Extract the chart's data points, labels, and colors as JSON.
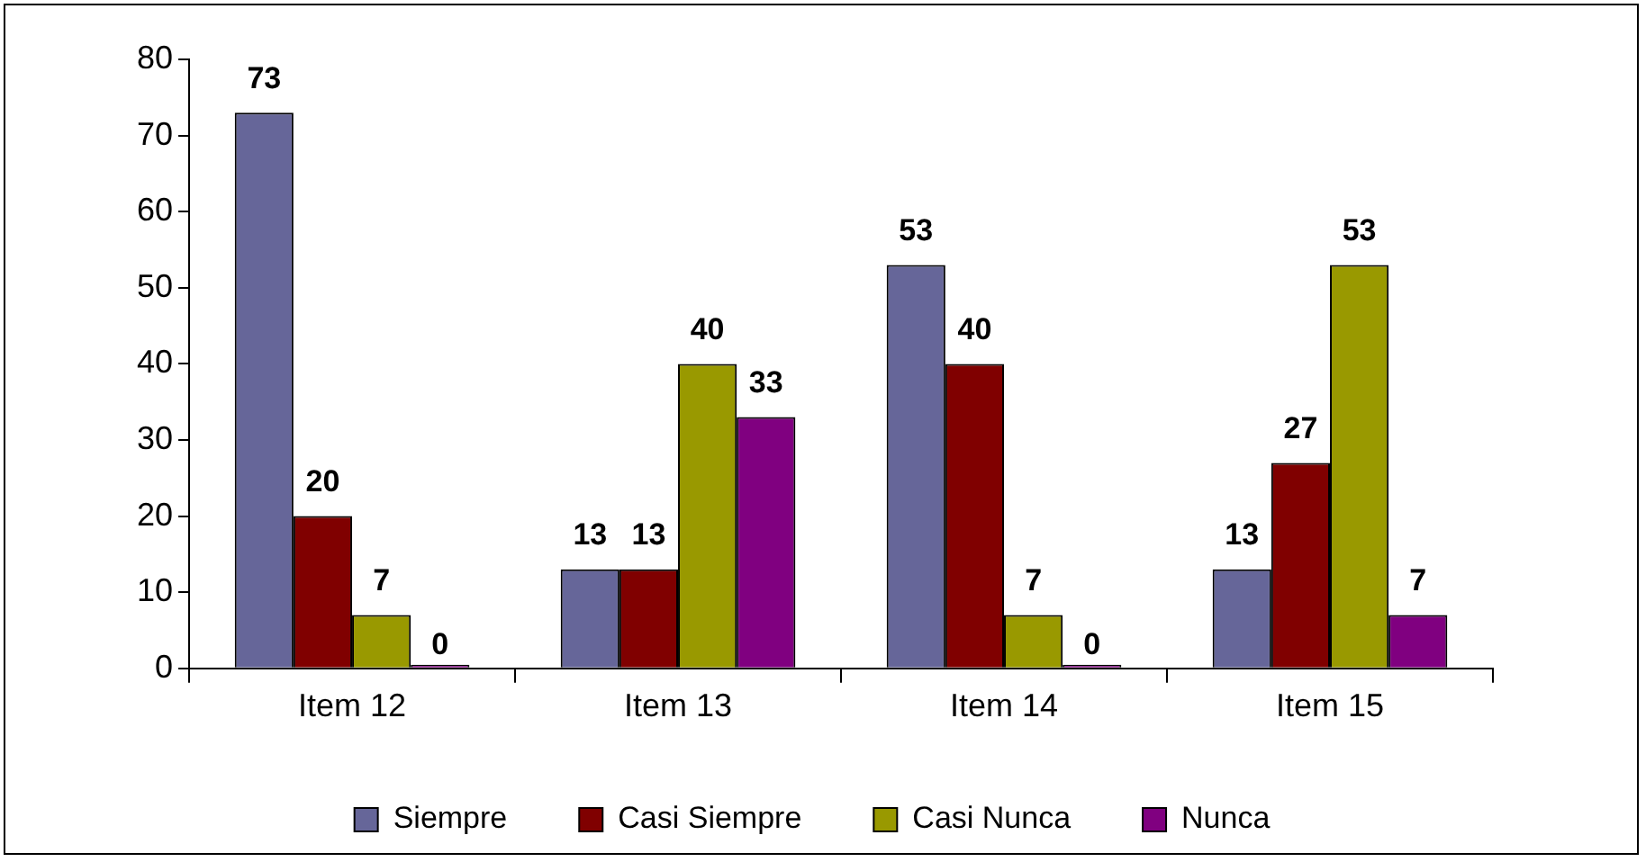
{
  "chart_data": {
    "type": "bar",
    "categories": [
      "Item 12",
      "Item 13",
      "Item 14",
      "Item 15"
    ],
    "series": [
      {
        "name": "Siempre",
        "color": "#666699",
        "values": [
          73,
          13,
          53,
          13
        ]
      },
      {
        "name": "Casi Siempre",
        "color": "#800000",
        "values": [
          20,
          13,
          40,
          27
        ]
      },
      {
        "name": "Casi Nunca",
        "color": "#999900",
        "values": [
          7,
          40,
          7,
          53
        ]
      },
      {
        "name": "Nunca",
        "color": "#800080",
        "values": [
          0,
          33,
          0,
          7
        ]
      }
    ],
    "ylim": [
      0,
      80
    ],
    "yticks": [
      0,
      10,
      20,
      30,
      40,
      50,
      60,
      70,
      80
    ],
    "grid": false,
    "legend": "bottom",
    "data_labels": true
  }
}
